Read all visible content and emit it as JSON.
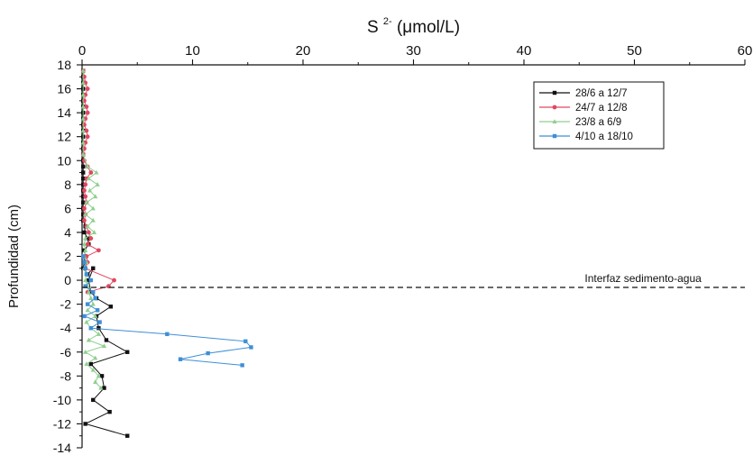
{
  "chart_data": {
    "type": "line",
    "title_main": "S",
    "title_sup": "2-",
    "title_unit": "(μmol/L)",
    "ylabel": "Profundidad (cm)",
    "xlim": [
      0,
      60
    ],
    "ylim": [
      -14,
      18
    ],
    "x_ticks": [
      0,
      10,
      20,
      30,
      40,
      50,
      60
    ],
    "y_ticks": [
      18,
      16,
      14,
      12,
      10,
      8,
      6,
      4,
      2,
      0,
      -2,
      -4,
      -6,
      -8,
      -10,
      -12,
      -14
    ],
    "x_axis_position": "top",
    "grid": false,
    "legend_position": "top-right",
    "annotation": {
      "text": "Interfaz sedimento-agua",
      "y": -0.6
    },
    "series": [
      {
        "name": "28/6 a 12/7",
        "color": "#111111",
        "marker": "square",
        "points": [
          [
            0.1,
            17.5
          ],
          [
            0.1,
            17.0
          ],
          [
            0.1,
            16.5
          ],
          [
            0.1,
            16.0
          ],
          [
            0.1,
            15.5
          ],
          [
            0.1,
            15.0
          ],
          [
            0.1,
            14.5
          ],
          [
            0.1,
            14.0
          ],
          [
            0.1,
            13.5
          ],
          [
            0.1,
            13.0
          ],
          [
            0.1,
            12.5
          ],
          [
            0.1,
            12.0
          ],
          [
            0.1,
            11.5
          ],
          [
            0.1,
            11.0
          ],
          [
            0.1,
            10.5
          ],
          [
            0.1,
            10.0
          ],
          [
            0.1,
            9.5
          ],
          [
            0.1,
            9.0
          ],
          [
            0.1,
            8.5
          ],
          [
            0.1,
            8.0
          ],
          [
            0.1,
            7.5
          ],
          [
            0.1,
            7.0
          ],
          [
            0.1,
            6.5
          ],
          [
            0.1,
            6.0
          ],
          [
            0.1,
            5.5
          ],
          [
            0.1,
            5.0
          ],
          [
            0.3,
            4.5
          ],
          [
            0.2,
            4.0
          ],
          [
            0.5,
            3.5
          ],
          [
            0.6,
            3.0
          ],
          [
            0.2,
            2.5
          ],
          [
            0.3,
            2.0
          ],
          [
            0.2,
            1.5
          ],
          [
            0.1,
            1.0
          ],
          [
            0.5,
            0.5
          ],
          [
            1.0,
            1.0
          ],
          [
            0.6,
            0.0
          ],
          [
            0.8,
            -1.0
          ],
          [
            1.3,
            -1.5
          ],
          [
            2.6,
            -2.2
          ],
          [
            1.3,
            -3.0
          ],
          [
            1.5,
            -4.0
          ],
          [
            2.2,
            -5.0
          ],
          [
            4.1,
            -6.0
          ],
          [
            0.8,
            -7.0
          ],
          [
            1.8,
            -8.0
          ],
          [
            2.0,
            -9.0
          ],
          [
            1.0,
            -10.0
          ],
          [
            2.5,
            -11.0
          ],
          [
            0.3,
            -12.0
          ],
          [
            4.1,
            -13.0
          ]
        ]
      },
      {
        "name": "24/7 a 12/8",
        "color": "#e0475f",
        "marker": "circle",
        "points": [
          [
            0.1,
            17.5
          ],
          [
            0.2,
            17.0
          ],
          [
            0.3,
            16.5
          ],
          [
            0.5,
            16.0
          ],
          [
            0.3,
            15.5
          ],
          [
            0.2,
            15.0
          ],
          [
            0.4,
            14.5
          ],
          [
            0.5,
            14.0
          ],
          [
            0.3,
            13.5
          ],
          [
            0.2,
            13.0
          ],
          [
            0.4,
            12.5
          ],
          [
            0.5,
            12.0
          ],
          [
            0.3,
            11.5
          ],
          [
            0.2,
            11.0
          ],
          [
            0.1,
            10.5
          ],
          [
            0.2,
            10.0
          ],
          [
            0.5,
            9.5
          ],
          [
            0.8,
            9.0
          ],
          [
            0.4,
            8.5
          ],
          [
            0.3,
            8.0
          ],
          [
            0.2,
            7.5
          ],
          [
            0.3,
            7.0
          ],
          [
            0.4,
            6.5
          ],
          [
            0.2,
            6.0
          ],
          [
            0.3,
            5.5
          ],
          [
            0.2,
            5.0
          ],
          [
            0.4,
            4.5
          ],
          [
            0.6,
            4.0
          ],
          [
            0.8,
            3.5
          ],
          [
            0.5,
            3.0
          ],
          [
            1.5,
            2.5
          ],
          [
            0.4,
            2.0
          ],
          [
            0.5,
            1.5
          ],
          [
            0.3,
            1.0
          ],
          [
            2.9,
            0.0
          ],
          [
            2.4,
            -0.5
          ],
          [
            0.5,
            -1.0
          ]
        ]
      },
      {
        "name": "23/8 a 6/9",
        "color": "#8fcf8f",
        "marker": "triangle",
        "points": [
          [
            0.1,
            17.5
          ],
          [
            0.1,
            16.5
          ],
          [
            0.1,
            15.5
          ],
          [
            0.1,
            14.5
          ],
          [
            0.1,
            13.5
          ],
          [
            0.1,
            12.5
          ],
          [
            0.1,
            11.5
          ],
          [
            0.1,
            10.5
          ],
          [
            0.5,
            9.5
          ],
          [
            1.3,
            9.0
          ],
          [
            0.6,
            8.5
          ],
          [
            1.4,
            8.0
          ],
          [
            0.7,
            7.5
          ],
          [
            1.2,
            7.0
          ],
          [
            0.4,
            6.5
          ],
          [
            1.0,
            6.0
          ],
          [
            0.3,
            5.5
          ],
          [
            1.0,
            5.0
          ],
          [
            0.5,
            4.5
          ],
          [
            1.1,
            4.0
          ],
          [
            0.3,
            3.5
          ],
          [
            0.2,
            3.0
          ],
          [
            0.3,
            2.5
          ],
          [
            0.2,
            2.0
          ],
          [
            0.4,
            1.5
          ],
          [
            0.2,
            1.0
          ],
          [
            0.4,
            0.5
          ],
          [
            0.3,
            0.0
          ],
          [
            0.5,
            -0.5
          ],
          [
            0.6,
            -1.0
          ],
          [
            0.8,
            -1.5
          ],
          [
            1.0,
            -2.0
          ],
          [
            0.5,
            -2.5
          ],
          [
            1.2,
            -3.0
          ],
          [
            0.4,
            -3.5
          ],
          [
            0.8,
            -4.0
          ],
          [
            1.5,
            -4.5
          ],
          [
            0.6,
            -5.0
          ],
          [
            2.0,
            -5.5
          ],
          [
            0.3,
            -6.0
          ],
          [
            1.2,
            -6.5
          ],
          [
            0.4,
            -7.0
          ],
          [
            1.0,
            -7.5
          ],
          [
            1.5,
            -8.0
          ],
          [
            1.2,
            -8.5
          ],
          [
            1.7,
            -9.0
          ]
        ]
      },
      {
        "name": "4/10 a 18/10",
        "color": "#3f8fd6",
        "marker": "square",
        "points": [
          [
            0.1,
            2.0
          ],
          [
            0.2,
            1.5
          ],
          [
            0.3,
            1.0
          ],
          [
            0.4,
            0.5
          ],
          [
            0.8,
            0.0
          ],
          [
            0.3,
            -0.5
          ],
          [
            1.0,
            -1.0
          ],
          [
            1.2,
            -1.5
          ],
          [
            0.5,
            -2.0
          ],
          [
            1.4,
            -2.5
          ],
          [
            0.2,
            -3.0
          ],
          [
            1.6,
            -3.5
          ],
          [
            0.8,
            -4.0
          ],
          [
            7.7,
            -4.5
          ],
          [
            14.8,
            -5.1
          ],
          [
            15.3,
            -5.6
          ],
          [
            11.4,
            -6.1
          ],
          [
            8.9,
            -6.6
          ],
          [
            14.5,
            -7.1
          ]
        ]
      }
    ]
  }
}
